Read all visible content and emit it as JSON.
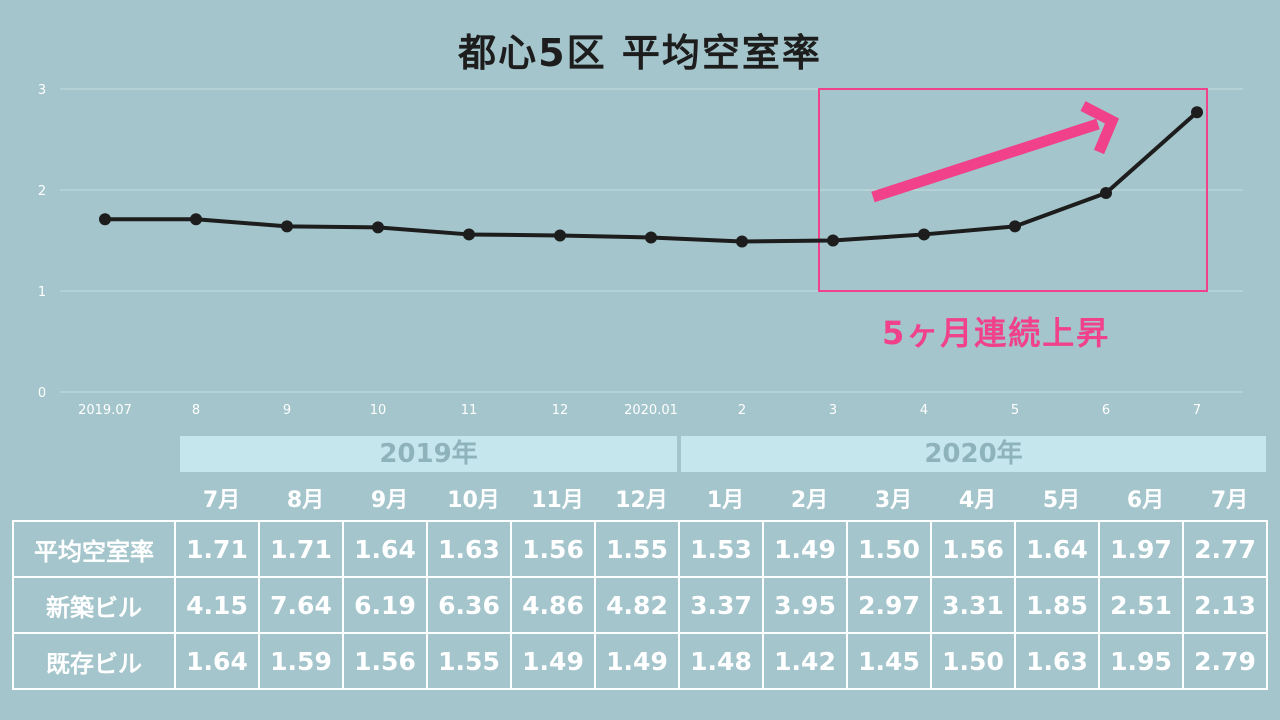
{
  "title": "都心5区 平均空室率",
  "callout": "5ヶ月連続上昇",
  "colors": {
    "background": "#a3c5cb",
    "line": "#1d1d1d",
    "highlight": "#f0418a",
    "year_band": "#c6e6ed",
    "table_text": "#ffffff"
  },
  "chart_data": {
    "type": "line",
    "title": "都心5区 平均空室率",
    "categories": [
      "2019.07",
      "8",
      "9",
      "10",
      "11",
      "12",
      "2020.01",
      "2",
      "3",
      "4",
      "5",
      "6",
      "7"
    ],
    "series": [
      {
        "values": [
          1.71,
          1.71,
          1.64,
          1.63,
          1.56,
          1.55,
          1.53,
          1.49,
          1.5,
          1.56,
          1.64,
          1.97,
          2.77
        ]
      }
    ],
    "ylim": [
      0,
      3
    ],
    "yticks": [
      "0",
      "1",
      "2",
      "3"
    ],
    "grid": true,
    "annotation": {
      "text": "5ヶ月連続上昇",
      "highlight_range": [
        "3",
        "7"
      ],
      "arrow": "upward trend"
    }
  },
  "table": {
    "years": [
      "2019年",
      "2020年"
    ],
    "months": [
      "7月",
      "8月",
      "9月",
      "10月",
      "11月",
      "12月",
      "1月",
      "2月",
      "3月",
      "4月",
      "5月",
      "6月",
      "7月"
    ],
    "rows": [
      {
        "label": "平均空室率",
        "values": [
          "1.71",
          "1.71",
          "1.64",
          "1.63",
          "1.56",
          "1.55",
          "1.53",
          "1.49",
          "1.50",
          "1.56",
          "1.64",
          "1.97",
          "2.77"
        ]
      },
      {
        "label": "新築ビル",
        "values": [
          "4.15",
          "7.64",
          "6.19",
          "6.36",
          "4.86",
          "4.82",
          "3.37",
          "3.95",
          "2.97",
          "3.31",
          "1.85",
          "2.51",
          "2.13"
        ]
      },
      {
        "label": "既存ビル",
        "values": [
          "1.64",
          "1.59",
          "1.56",
          "1.55",
          "1.49",
          "1.49",
          "1.48",
          "1.42",
          "1.45",
          "1.50",
          "1.63",
          "1.95",
          "2.79"
        ]
      }
    ]
  }
}
